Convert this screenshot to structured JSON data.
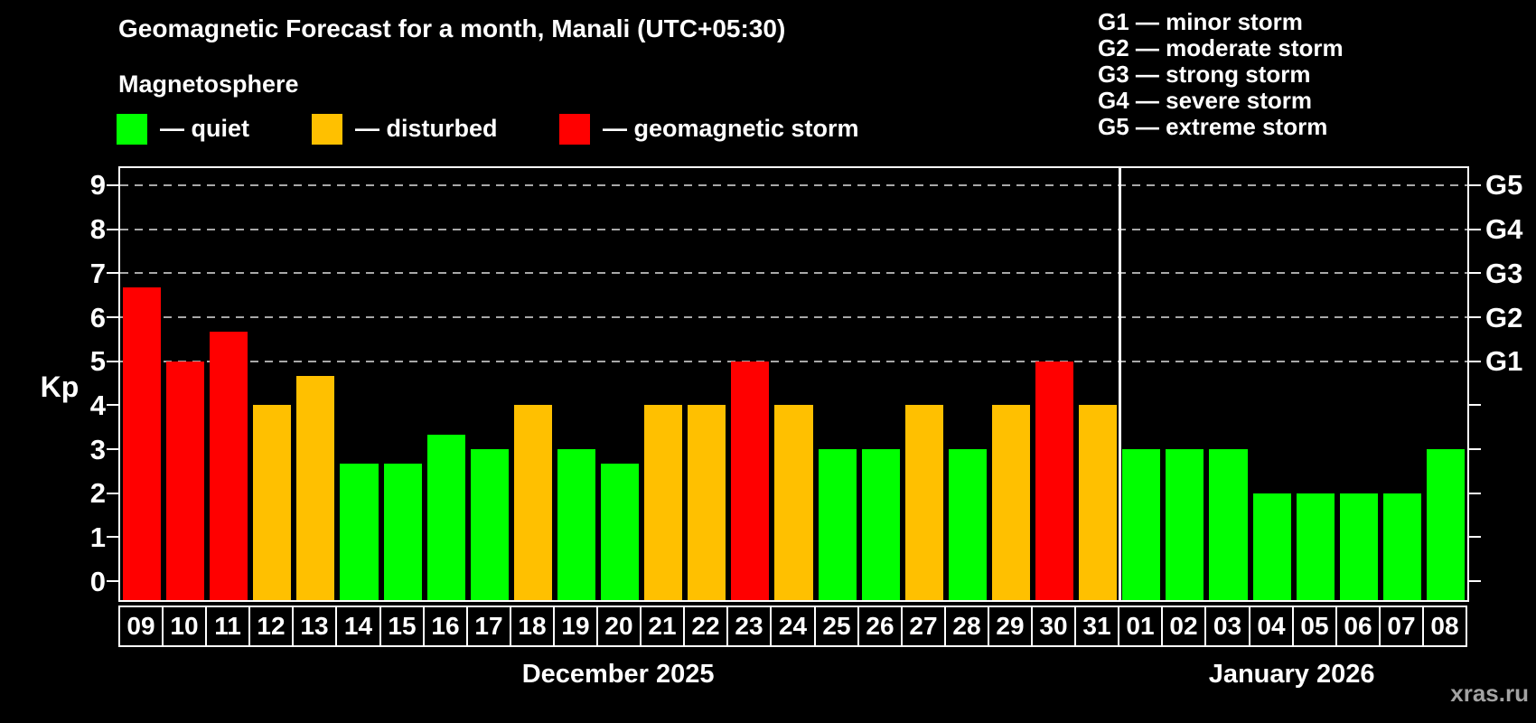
{
  "title": "Geomagnetic Forecast for a month, Manali (UTC+05:30)",
  "subtitle": "Magnetosphere",
  "kp_legend": [
    {
      "status": "quiet",
      "label": "— quiet"
    },
    {
      "status": "disturbed",
      "label": "— disturbed"
    },
    {
      "status": "storm",
      "label": "— geomagnetic storm"
    }
  ],
  "g_legend": [
    {
      "label": "G1 — minor storm"
    },
    {
      "label": "G2 — moderate storm"
    },
    {
      "label": "G3 — strong storm"
    },
    {
      "label": "G4 — severe storm"
    },
    {
      "label": "G5 — extreme storm"
    }
  ],
  "watermark": "xras.ru",
  "colors": {
    "quiet": "#00ff00",
    "disturbed": "#ffc000",
    "storm": "#ff0000",
    "background": "#000000",
    "foreground": "#ffffff",
    "gridline": "#a8a8a8"
  },
  "chart_data": {
    "type": "bar",
    "ylabel": "Kp",
    "ylim": [
      0,
      9
    ],
    "yticks": [
      0,
      1,
      2,
      3,
      4,
      5,
      6,
      7,
      8,
      9
    ],
    "gridlines_at": [
      5,
      6,
      7,
      8,
      9
    ],
    "grid": "dashed, only at G-storm levels 5-9",
    "legend_position": "top",
    "right_axis": [
      {
        "label": "G1",
        "kp": 5
      },
      {
        "label": "G2",
        "kp": 6
      },
      {
        "label": "G3",
        "kp": 7
      },
      {
        "label": "G4",
        "kp": 8
      },
      {
        "label": "G5",
        "kp": 9
      }
    ],
    "months": [
      {
        "label": "December 2025",
        "days": [
          {
            "day": "09",
            "kp": 6.67,
            "status": "storm"
          },
          {
            "day": "10",
            "kp": 5.0,
            "status": "storm"
          },
          {
            "day": "11",
            "kp": 5.67,
            "status": "storm"
          },
          {
            "day": "12",
            "kp": 4.0,
            "status": "disturbed"
          },
          {
            "day": "13",
            "kp": 4.67,
            "status": "disturbed"
          },
          {
            "day": "14",
            "kp": 2.67,
            "status": "quiet"
          },
          {
            "day": "15",
            "kp": 2.67,
            "status": "quiet"
          },
          {
            "day": "16",
            "kp": 3.33,
            "status": "quiet"
          },
          {
            "day": "17",
            "kp": 3.0,
            "status": "quiet"
          },
          {
            "day": "18",
            "kp": 4.0,
            "status": "disturbed"
          },
          {
            "day": "19",
            "kp": 3.0,
            "status": "quiet"
          },
          {
            "day": "20",
            "kp": 2.67,
            "status": "quiet"
          },
          {
            "day": "21",
            "kp": 4.0,
            "status": "disturbed"
          },
          {
            "day": "22",
            "kp": 4.0,
            "status": "disturbed"
          },
          {
            "day": "23",
            "kp": 5.0,
            "status": "storm"
          },
          {
            "day": "24",
            "kp": 4.0,
            "status": "disturbed"
          },
          {
            "day": "25",
            "kp": 3.0,
            "status": "quiet"
          },
          {
            "day": "26",
            "kp": 3.0,
            "status": "quiet"
          },
          {
            "day": "27",
            "kp": 4.0,
            "status": "disturbed"
          },
          {
            "day": "28",
            "kp": 3.0,
            "status": "quiet"
          },
          {
            "day": "29",
            "kp": 4.0,
            "status": "disturbed"
          },
          {
            "day": "30",
            "kp": 5.0,
            "status": "storm"
          },
          {
            "day": "31",
            "kp": 4.0,
            "status": "disturbed"
          }
        ]
      },
      {
        "label": "January 2026",
        "days": [
          {
            "day": "01",
            "kp": 3.0,
            "status": "quiet"
          },
          {
            "day": "02",
            "kp": 3.0,
            "status": "quiet"
          },
          {
            "day": "03",
            "kp": 3.0,
            "status": "quiet"
          },
          {
            "day": "04",
            "kp": 2.0,
            "status": "quiet"
          },
          {
            "day": "05",
            "kp": 2.0,
            "status": "quiet"
          },
          {
            "day": "06",
            "kp": 2.0,
            "status": "quiet"
          },
          {
            "day": "07",
            "kp": 2.0,
            "status": "quiet"
          },
          {
            "day": "08",
            "kp": 3.0,
            "status": "quiet"
          }
        ]
      }
    ]
  }
}
